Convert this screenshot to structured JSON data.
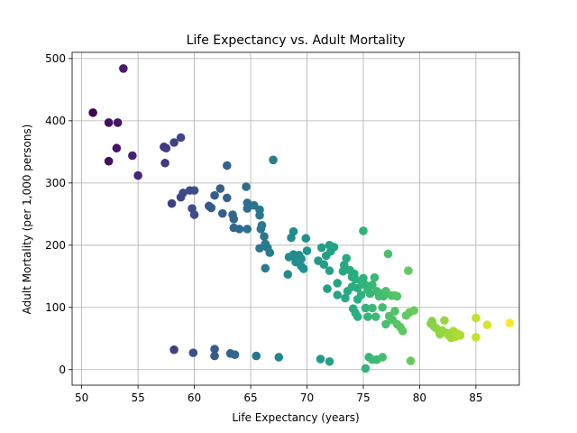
{
  "chart_data": {
    "type": "scatter",
    "title": "Life Expectancy vs. Adult Mortality",
    "xlabel": "Life Expectancy (years)",
    "ylabel": "Adult Mortality (per 1,000 persons)",
    "xlim": [
      49.15,
      88.85
    ],
    "ylim": [
      -25,
      510
    ],
    "xticks": [
      50,
      55,
      60,
      65,
      70,
      75,
      80,
      85
    ],
    "yticks": [
      0,
      100,
      200,
      300,
      400,
      500
    ],
    "grid": true,
    "legend": "none",
    "colormap": "viridis",
    "color_by": "x",
    "color_range": [
      51,
      88
    ],
    "points": [
      [
        51.0,
        413
      ],
      [
        52.4,
        397
      ],
      [
        53.2,
        397
      ],
      [
        53.7,
        484
      ],
      [
        53.1,
        356
      ],
      [
        52.4,
        335
      ],
      [
        54.5,
        344
      ],
      [
        55.0,
        312
      ],
      [
        57.3,
        358
      ],
      [
        57.5,
        356
      ],
      [
        57.4,
        332
      ],
      [
        58.2,
        365
      ],
      [
        58.8,
        373
      ],
      [
        58.0,
        267
      ],
      [
        58.8,
        277
      ],
      [
        59.0,
        284
      ],
      [
        59.6,
        288
      ],
      [
        60.0,
        288
      ],
      [
        59.8,
        259
      ],
      [
        60.0,
        249
      ],
      [
        61.3,
        263
      ],
      [
        61.5,
        260
      ],
      [
        61.8,
        280
      ],
      [
        62.3,
        291
      ],
      [
        62.9,
        328
      ],
      [
        62.9,
        276
      ],
      [
        62.5,
        251
      ],
      [
        63.4,
        249
      ],
      [
        63.5,
        242
      ],
      [
        63.5,
        228
      ],
      [
        64.0,
        226
      ],
      [
        64.6,
        294
      ],
      [
        64.7,
        268
      ],
      [
        64.7,
        259
      ],
      [
        64.7,
        226
      ],
      [
        65.3,
        264
      ],
      [
        65.8,
        257
      ],
      [
        65.8,
        248
      ],
      [
        65.9,
        226
      ],
      [
        66.0,
        232
      ],
      [
        66.2,
        214
      ],
      [
        66.3,
        202
      ],
      [
        66.5,
        196
      ],
      [
        66.7,
        188
      ],
      [
        65.8,
        195
      ],
      [
        66.3,
        163
      ],
      [
        67.0,
        337
      ],
      [
        68.4,
        181
      ],
      [
        68.6,
        212
      ],
      [
        68.8,
        222
      ],
      [
        69.0,
        173
      ],
      [
        69.3,
        184
      ],
      [
        69.5,
        166
      ],
      [
        69.7,
        162
      ],
      [
        69.9,
        211
      ],
      [
        70.0,
        191
      ],
      [
        68.8,
        185
      ],
      [
        68.3,
        153
      ],
      [
        69.0,
        180
      ],
      [
        69.5,
        178
      ],
      [
        71.0,
        175
      ],
      [
        71.3,
        196
      ],
      [
        71.5,
        169
      ],
      [
        71.7,
        183
      ],
      [
        72.0,
        200
      ],
      [
        72.1,
        190
      ],
      [
        72.4,
        197
      ],
      [
        71.8,
        130
      ],
      [
        72.0,
        159
      ],
      [
        72.7,
        139
      ],
      [
        72.7,
        120
      ],
      [
        73.2,
        158
      ],
      [
        73.3,
        168
      ],
      [
        73.5,
        179
      ],
      [
        73.4,
        115
      ],
      [
        73.6,
        126
      ],
      [
        73.8,
        160
      ],
      [
        74.0,
        149
      ],
      [
        74.0,
        133
      ],
      [
        74.2,
        154
      ],
      [
        74.3,
        145
      ],
      [
        74.5,
        131
      ],
      [
        74.5,
        113
      ],
      [
        74.1,
        98
      ],
      [
        74.3,
        91
      ],
      [
        74.5,
        85
      ],
      [
        74.8,
        120
      ],
      [
        74.9,
        138
      ],
      [
        75.0,
        147
      ],
      [
        75.2,
        136
      ],
      [
        75.4,
        128
      ],
      [
        75.6,
        122
      ],
      [
        75.8,
        136
      ],
      [
        76.0,
        148
      ],
      [
        76.2,
        126
      ],
      [
        76.4,
        118
      ],
      [
        76.6,
        122
      ],
      [
        76.8,
        118
      ],
      [
        77.0,
        126
      ],
      [
        77.2,
        186
      ],
      [
        77.5,
        119
      ],
      [
        77.8,
        119
      ],
      [
        78.0,
        118
      ],
      [
        75.0,
        223
      ],
      [
        75.2,
        99
      ],
      [
        75.4,
        85
      ],
      [
        75.8,
        99
      ],
      [
        76.1,
        85
      ],
      [
        76.7,
        100
      ],
      [
        77.0,
        73
      ],
      [
        77.3,
        86
      ],
      [
        77.6,
        80
      ],
      [
        77.8,
        94
      ],
      [
        78.0,
        73
      ],
      [
        78.3,
        68
      ],
      [
        78.5,
        62
      ],
      [
        78.8,
        87
      ],
      [
        79.1,
        92
      ],
      [
        79.5,
        95
      ],
      [
        79.0,
        159
      ],
      [
        81.0,
        74
      ],
      [
        81.1,
        78
      ],
      [
        81.3,
        69
      ],
      [
        81.5,
        66
      ],
      [
        81.7,
        63
      ],
      [
        81.8,
        57
      ],
      [
        82.0,
        63
      ],
      [
        82.2,
        79
      ],
      [
        82.4,
        59
      ],
      [
        82.6,
        55
      ],
      [
        82.8,
        51
      ],
      [
        83.0,
        62
      ],
      [
        83.2,
        53
      ],
      [
        83.4,
        57
      ],
      [
        83.6,
        55
      ],
      [
        85.0,
        83
      ],
      [
        85.0,
        52
      ],
      [
        86.0,
        72
      ],
      [
        88.0,
        75
      ],
      [
        58.2,
        32
      ],
      [
        59.9,
        27
      ],
      [
        61.8,
        33
      ],
      [
        61.8,
        22
      ],
      [
        63.2,
        26
      ],
      [
        63.6,
        24
      ],
      [
        65.5,
        22
      ],
      [
        67.5,
        20
      ],
      [
        71.2,
        17
      ],
      [
        72.0,
        13
      ],
      [
        75.2,
        2
      ],
      [
        75.5,
        20
      ],
      [
        75.8,
        16
      ],
      [
        76.2,
        16
      ],
      [
        76.7,
        20
      ],
      [
        79.2,
        14
      ]
    ]
  }
}
